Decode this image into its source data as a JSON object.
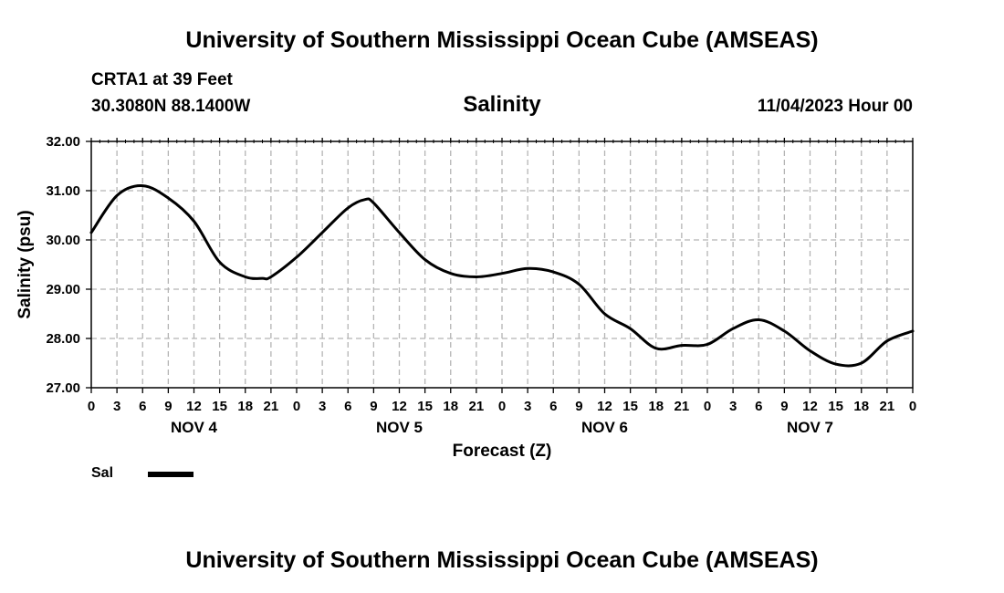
{
  "header": {
    "title": "University of Southern Mississippi Ocean Cube (AMSEAS)",
    "station": "CRTA1 at 39 Feet",
    "coordinates": "30.3080N  88.1400W",
    "variable": "Salinity",
    "datetime": "11/04/2023 Hour 00"
  },
  "footer": {
    "title": "University of Southern Mississippi Ocean Cube (AMSEAS)"
  },
  "legend": {
    "label": "Sal",
    "color": "#000000"
  },
  "chart_data": {
    "type": "line",
    "title": "Salinity",
    "xlabel": "Forecast (Z)",
    "ylabel": "Salinity (psu)",
    "ylim": [
      27,
      32
    ],
    "yticks": [
      27,
      28,
      29,
      30,
      31,
      32
    ],
    "ytick_labels": [
      "27.00",
      "28.00",
      "29.00",
      "30.00",
      "31.00",
      "32.00"
    ],
    "xlim": [
      0,
      96
    ],
    "xtick_hours": [
      0,
      3,
      6,
      9,
      12,
      15,
      18,
      21,
      24,
      27,
      30,
      33,
      36,
      39,
      42,
      45,
      48,
      51,
      54,
      57,
      60,
      63,
      66,
      69,
      72,
      75,
      78,
      81,
      84,
      87,
      90,
      93,
      96
    ],
    "xtick_labels": [
      "0",
      "3",
      "6",
      "9",
      "12",
      "15",
      "18",
      "21",
      "0",
      "3",
      "6",
      "9",
      "12",
      "15",
      "18",
      "21",
      "0",
      "3",
      "6",
      "9",
      "12",
      "15",
      "18",
      "21",
      "0",
      "3",
      "6",
      "9",
      "12",
      "15",
      "18",
      "21",
      "0"
    ],
    "day_labels": [
      {
        "label": "NOV 4",
        "hour": 12
      },
      {
        "label": "NOV 5",
        "hour": 36
      },
      {
        "label": "NOV 6",
        "hour": 60
      },
      {
        "label": "NOV 7",
        "hour": 84
      }
    ],
    "grid": true,
    "series": [
      {
        "name": "Sal",
        "hours": [
          0,
          3,
          6,
          9,
          12,
          15,
          18,
          20,
          21,
          24,
          27,
          30,
          32,
          33,
          36,
          39,
          42,
          45,
          48,
          51,
          54,
          57,
          60,
          63,
          66,
          69,
          72,
          75,
          78,
          81,
          84,
          87,
          90,
          93,
          96
        ],
        "values": [
          30.15,
          30.9,
          31.1,
          30.85,
          30.38,
          29.55,
          29.25,
          29.22,
          29.25,
          29.65,
          30.15,
          30.65,
          30.82,
          30.75,
          30.15,
          29.6,
          29.32,
          29.25,
          29.32,
          29.42,
          29.35,
          29.1,
          28.5,
          28.2,
          27.8,
          27.86,
          27.88,
          28.2,
          28.38,
          28.15,
          27.75,
          27.48,
          27.5,
          27.95,
          28.15
        ]
      }
    ]
  }
}
